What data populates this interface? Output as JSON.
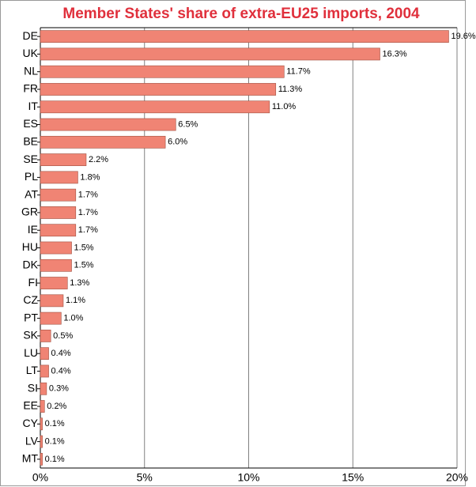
{
  "chart_data": {
    "type": "bar",
    "orientation": "horizontal",
    "title": "Member States' share of extra-EU25 imports, 2004",
    "categories": [
      "DE",
      "UK",
      "NL",
      "FR",
      "IT",
      "ES",
      "BE",
      "SE",
      "PL",
      "AT",
      "GR",
      "IE",
      "HU",
      "DK",
      "FI",
      "CZ",
      "PT",
      "SK",
      "LU",
      "LT",
      "SI",
      "EE",
      "CY",
      "LV",
      "MT"
    ],
    "values": [
      19.6,
      16.3,
      11.7,
      11.3,
      11.0,
      6.5,
      6.0,
      2.2,
      1.8,
      1.7,
      1.7,
      1.7,
      1.5,
      1.5,
      1.3,
      1.1,
      1.0,
      0.5,
      0.4,
      0.4,
      0.3,
      0.2,
      0.1,
      0.1,
      0.1
    ],
    "value_labels": [
      "19.6%",
      "16.3%",
      "11.7%",
      "11.3%",
      "11.0%",
      "6.5%",
      "6.0%",
      "2.2%",
      "1.8%",
      "1.7%",
      "1.7%",
      "1.7%",
      "1.5%",
      "1.5%",
      "1.3%",
      "1.1%",
      "1.0%",
      "0.5%",
      "0.4%",
      "0.4%",
      "0.3%",
      "0.2%",
      "0.1%",
      "0.1%",
      "0.1%"
    ],
    "color": "#f08474",
    "xlim": [
      0,
      20
    ],
    "xticks": [
      {
        "value": 0,
        "label": "0%"
      },
      {
        "value": 5,
        "label": "5%"
      },
      {
        "value": 10,
        "label": "10%"
      },
      {
        "value": 15,
        "label": "15%"
      },
      {
        "value": 20,
        "label": "20%"
      }
    ],
    "grid": true
  }
}
